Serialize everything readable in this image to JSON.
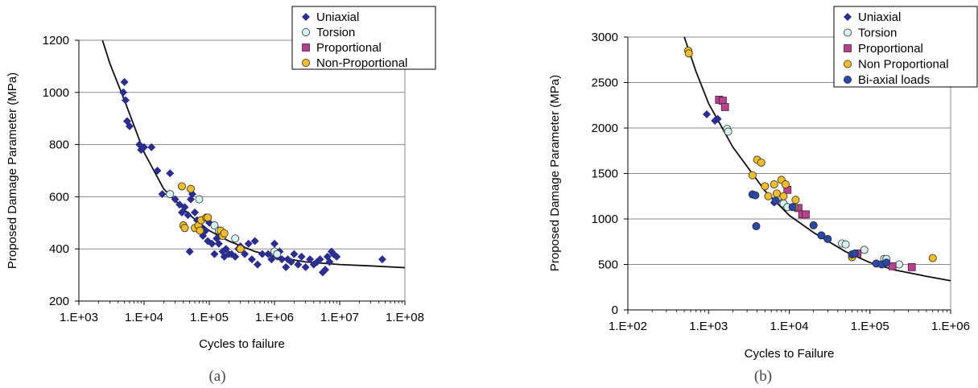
{
  "chart_data": [
    {
      "type": "scatter",
      "panel_label": "(a)",
      "xlabel": "Cycles to failure",
      "ylabel": "Proposed Damage Parameter (MPa)",
      "x_scale": "log",
      "xlim": [
        1000,
        100000000
      ],
      "ylim": [
        200,
        1200
      ],
      "x_ticks": [
        "1.E+03",
        "1.E+04",
        "1.E+05",
        "1.E+06",
        "1.E+07",
        "1.E+08"
      ],
      "y_ticks": [
        "200",
        "400",
        "600",
        "800",
        "1000",
        "1200"
      ],
      "grid": "horizontal",
      "legend_position": "top-right",
      "series": [
        {
          "name": "Uniaxial",
          "marker": "diamond",
          "color": "#2b2e8c",
          "points": [
            [
              5000,
              1040
            ],
            [
              4800,
              1000
            ],
            [
              5200,
              970
            ],
            [
              5500,
              890
            ],
            [
              6000,
              870
            ],
            [
              8500,
              800
            ],
            [
              9000,
              780
            ],
            [
              10000,
              790
            ],
            [
              13000,
              790
            ],
            [
              16000,
              700
            ],
            [
              19000,
              610
            ],
            [
              25000,
              690
            ],
            [
              30000,
              590
            ],
            [
              35000,
              570
            ],
            [
              38000,
              540
            ],
            [
              42000,
              560
            ],
            [
              47000,
              530
            ],
            [
              52000,
              590
            ],
            [
              55000,
              610
            ],
            [
              50000,
              390
            ],
            [
              60000,
              540
            ],
            [
              65000,
              510
            ],
            [
              70000,
              490
            ],
            [
              75000,
              480
            ],
            [
              80000,
              450
            ],
            [
              88000,
              470
            ],
            [
              95000,
              430
            ],
            [
              100000,
              500
            ],
            [
              110000,
              420
            ],
            [
              120000,
              380
            ],
            [
              130000,
              440
            ],
            [
              140000,
              420
            ],
            [
              150000,
              450
            ],
            [
              160000,
              390
            ],
            [
              170000,
              370
            ],
            [
              180000,
              400
            ],
            [
              200000,
              380
            ],
            [
              220000,
              380
            ],
            [
              250000,
              370
            ],
            [
              280000,
              400
            ],
            [
              300000,
              410
            ],
            [
              350000,
              380
            ],
            [
              400000,
              420
            ],
            [
              450000,
              360
            ],
            [
              500000,
              430
            ],
            [
              550000,
              340
            ],
            [
              650000,
              380
            ],
            [
              800000,
              380
            ],
            [
              900000,
              360
            ],
            [
              1000000,
              420
            ],
            [
              1100000,
              370
            ],
            [
              1200000,
              390
            ],
            [
              1300000,
              360
            ],
            [
              1500000,
              330
            ],
            [
              1600000,
              360
            ],
            [
              1800000,
              350
            ],
            [
              2000000,
              380
            ],
            [
              2300000,
              340
            ],
            [
              2600000,
              370
            ],
            [
              3000000,
              330
            ],
            [
              3500000,
              360
            ],
            [
              4000000,
              340
            ],
            [
              4500000,
              350
            ],
            [
              5000000,
              360
            ],
            [
              5500000,
              310
            ],
            [
              6000000,
              320
            ],
            [
              6500000,
              370
            ],
            [
              7000000,
              350
            ],
            [
              7500000,
              390
            ],
            [
              8000000,
              380
            ],
            [
              9000000,
              370
            ],
            [
              45000000,
              360
            ]
          ]
        },
        {
          "name": "Torsion",
          "marker": "circle",
          "color": "#d7f2f2",
          "points": [
            [
              25000,
              610
            ],
            [
              70000,
              590
            ],
            [
              120000,
              490
            ],
            [
              140000,
              470
            ],
            [
              250000,
              440
            ],
            [
              1000000,
              390
            ],
            [
              1100000,
              380
            ]
          ]
        },
        {
          "name": "Proportional",
          "marker": "square",
          "color": "#b5418f",
          "points": []
        },
        {
          "name": "Non-Proportional",
          "marker": "circle",
          "color": "#f2bd2a",
          "points": [
            [
              38000,
              640
            ],
            [
              52000,
              630
            ],
            [
              40000,
              490
            ],
            [
              42000,
              480
            ],
            [
              60000,
              480
            ],
            [
              68000,
              490
            ],
            [
              72000,
              470
            ],
            [
              75000,
              510
            ],
            [
              90000,
              520
            ],
            [
              95000,
              520
            ],
            [
              150000,
              470
            ],
            [
              160000,
              450
            ],
            [
              170000,
              460
            ],
            [
              300000,
              400
            ]
          ]
        }
      ],
      "fit_curve": [
        [
          2300,
          1200
        ],
        [
          3000,
          1110
        ],
        [
          5000,
          970
        ],
        [
          10000,
          770
        ],
        [
          20000,
          630
        ],
        [
          50000,
          530
        ],
        [
          100000,
          470
        ],
        [
          200000,
          430
        ],
        [
          500000,
          390
        ],
        [
          1000000,
          370
        ],
        [
          3000000,
          350
        ],
        [
          10000000,
          340
        ],
        [
          30000000,
          335
        ],
        [
          100000000,
          328
        ]
      ]
    },
    {
      "type": "scatter",
      "panel_label": "(b)",
      "xlabel": "Cycles to Failure",
      "ylabel": "Proposed Damage Parameter (MPa)",
      "x_scale": "log",
      "xlim": [
        100,
        1000000
      ],
      "ylim": [
        0,
        3000
      ],
      "x_ticks": [
        "1.E+02",
        "1.E+03",
        "1.E+04",
        "1.E+05",
        "1.E+06"
      ],
      "y_ticks": [
        "0",
        "500",
        "1000",
        "1500",
        "2000",
        "2500",
        "3000"
      ],
      "grid": "horizontal",
      "legend_position": "top-right",
      "series": [
        {
          "name": "Uniaxial",
          "marker": "diamond",
          "color": "#2b2e8c",
          "points": [
            [
              950,
              2150
            ],
            [
              1200,
              2080
            ],
            [
              1300,
              2100
            ],
            [
              6500,
              1180
            ],
            [
              7000,
              1220
            ]
          ]
        },
        {
          "name": "Torsion",
          "marker": "circle",
          "color": "#d7f2f2",
          "points": [
            [
              1700,
              1990
            ],
            [
              1750,
              1960
            ],
            [
              7200,
              1230
            ],
            [
              8500,
              1170
            ],
            [
              9500,
              1130
            ],
            [
              45000,
              730
            ],
            [
              50000,
              720
            ],
            [
              85000,
              660
            ],
            [
              150000,
              560
            ],
            [
              160000,
              560
            ],
            [
              230000,
              500
            ]
          ]
        },
        {
          "name": "Proportional",
          "marker": "square",
          "color": "#b5418f",
          "points": [
            [
              1350,
              2310
            ],
            [
              1500,
              2300
            ],
            [
              1600,
              2230
            ],
            [
              9500,
              1320
            ],
            [
              13000,
              1120
            ],
            [
              14500,
              1050
            ],
            [
              16000,
              1050
            ],
            [
              70000,
              620
            ],
            [
              190000,
              480
            ],
            [
              330000,
              470
            ]
          ]
        },
        {
          "name": "Non Proportional",
          "marker": "circle",
          "color": "#f2bd2a",
          "points": [
            [
              560,
              2850
            ],
            [
              570,
              2820
            ],
            [
              3500,
              1480
            ],
            [
              4000,
              1650
            ],
            [
              4500,
              1620
            ],
            [
              5000,
              1360
            ],
            [
              5500,
              1250
            ],
            [
              6500,
              1380
            ],
            [
              7000,
              1280
            ],
            [
              8000,
              1430
            ],
            [
              8500,
              1250
            ],
            [
              9000,
              1380
            ],
            [
              11500,
              1130
            ],
            [
              12000,
              1210
            ],
            [
              60000,
              580
            ],
            [
              600000,
              570
            ]
          ]
        },
        {
          "name": "Bi-axial loads",
          "marker": "circle",
          "color": "#2a48a8",
          "points": [
            [
              3500,
              1270
            ],
            [
              3800,
              1260
            ],
            [
              3900,
              920
            ],
            [
              6800,
              1200
            ],
            [
              11000,
              1130
            ],
            [
              20000,
              930
            ],
            [
              25000,
              820
            ],
            [
              30000,
              780
            ],
            [
              60000,
              610
            ],
            [
              65000,
              620
            ],
            [
              120000,
              510
            ],
            [
              140000,
              500
            ],
            [
              160000,
              520
            ]
          ]
        }
      ],
      "fit_curve": [
        [
          500,
          3000
        ],
        [
          700,
          2620
        ],
        [
          1000,
          2270
        ],
        [
          2000,
          1790
        ],
        [
          5000,
          1310
        ],
        [
          10000,
          1040
        ],
        [
          20000,
          850
        ],
        [
          50000,
          640
        ],
        [
          100000,
          520
        ],
        [
          200000,
          440
        ],
        [
          500000,
          370
        ],
        [
          1000000,
          320
        ]
      ]
    }
  ]
}
